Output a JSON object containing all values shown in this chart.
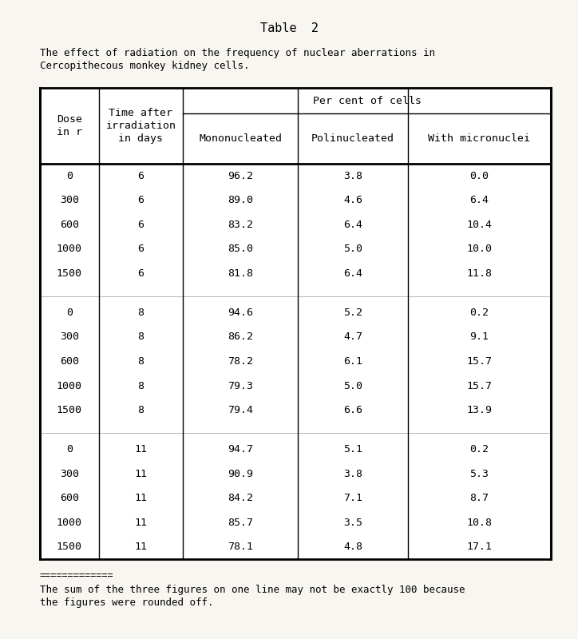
{
  "title": "Table  2",
  "subtitle_line1": "The effect of radiation on the frequency of nuclear aberrations in",
  "subtitle_line2": "Cercopithecous monkey kidney cells.",
  "footnote_dash": "=============",
  "footnote_line1": "The sum of the three figures on one line may not be exactly 100 because",
  "footnote_line2": "the figures were rounded off.",
  "col_headers_top": "Per cent of cells",
  "col_headers": [
    "Dose\nin r",
    "Time after\nirradiation\nin days",
    "Mononucleated",
    "Polinucleated",
    "With micronuclei"
  ],
  "rows": [
    [
      "0",
      "6",
      "96.2",
      "3.8",
      "0.0"
    ],
    [
      "300",
      "6",
      "89.0",
      "4.6",
      "6.4"
    ],
    [
      "600",
      "6",
      "83.2",
      "6.4",
      "10.4"
    ],
    [
      "1000",
      "6",
      "85.0",
      "5.0",
      "10.0"
    ],
    [
      "1500",
      "6",
      "81.8",
      "6.4",
      "11.8"
    ],
    [
      "0",
      "8",
      "94.6",
      "5.2",
      "0.2"
    ],
    [
      "300",
      "8",
      "86.2",
      "4.7",
      "9.1"
    ],
    [
      "600",
      "8",
      "78.2",
      "6.1",
      "15.7"
    ],
    [
      "1000",
      "8",
      "79.3",
      "5.0",
      "15.7"
    ],
    [
      "1500",
      "8",
      "79.4",
      "6.6",
      "13.9"
    ],
    [
      "0",
      "11",
      "94.7",
      "5.1",
      "0.2"
    ],
    [
      "300",
      "11",
      "90.9",
      "3.8",
      "5.3"
    ],
    [
      "600",
      "11",
      "84.2",
      "7.1",
      "8.7"
    ],
    [
      "1000",
      "11",
      "85.7",
      "3.5",
      "10.8"
    ],
    [
      "1500",
      "11",
      "78.1",
      "4.8",
      "17.1"
    ]
  ],
  "group_separators": [
    5,
    10
  ],
  "bg_color": "#f8f6f0",
  "font_size": 9.5,
  "header_font_size": 9.5,
  "title_font_size": 11
}
